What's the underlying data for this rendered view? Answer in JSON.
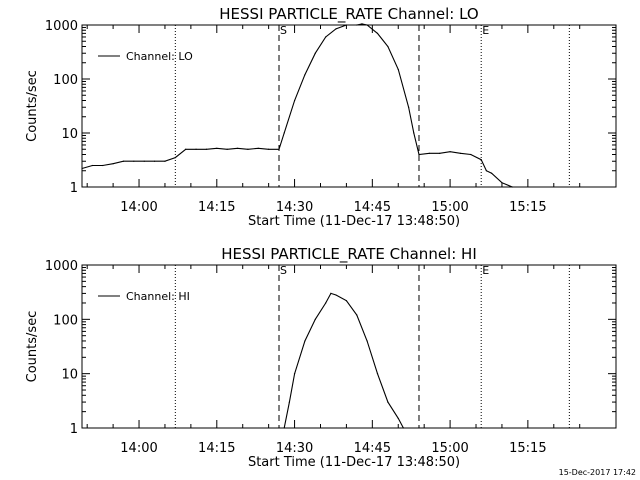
{
  "footer_timestamp": "15-Dec-2017 17:42",
  "chart_data": [
    {
      "type": "line",
      "title": "HESSI PARTICLE_RATE Channel: LO",
      "xlabel": "Start Time (11-Dec-17 13:48:50)",
      "ylabel": "Counts/sec",
      "yscale": "log",
      "xlim": [
        "13:49",
        "15:32"
      ],
      "ylim": [
        1,
        1000
      ],
      "x_tick_labels": [
        "14:00",
        "14:15",
        "14:30",
        "14:45",
        "15:00",
        "15:15"
      ],
      "y_tick_labels": [
        "1",
        "10",
        "100",
        "1000"
      ],
      "legend": {
        "position": "top-left",
        "entries": [
          "Channel: LO"
        ]
      },
      "markers": [
        {
          "label": "S",
          "time": "14:27",
          "style": "dashed"
        },
        {
          "label": "E",
          "time": "15:06",
          "style": "dotted"
        }
      ],
      "vlines": [
        {
          "time": "13:49",
          "style": "dotted"
        },
        {
          "time": "14:07",
          "style": "dotted"
        },
        {
          "time": "14:27",
          "style": "dashed"
        },
        {
          "time": "14:54",
          "style": "dashed"
        },
        {
          "time": "15:06",
          "style": "dotted"
        },
        {
          "time": "15:23",
          "style": "dotted"
        }
      ],
      "series": [
        {
          "name": "Channel: LO",
          "x": [
            "13:49",
            "13:51",
            "13:53",
            "13:55",
            "13:57",
            "13:59",
            "14:01",
            "14:03",
            "14:05",
            "14:07",
            "14:09",
            "14:11",
            "14:13",
            "14:15",
            "14:17",
            "14:19",
            "14:21",
            "14:23",
            "14:25",
            "14:27",
            "14:28",
            "14:30",
            "14:32",
            "14:34",
            "14:36",
            "14:38",
            "14:40",
            "14:42",
            "14:43",
            "14:44",
            "14:46",
            "14:48",
            "14:50",
            "14:52",
            "14:53",
            "14:54",
            "14:56",
            "14:58",
            "15:00",
            "15:02",
            "15:04",
            "15:06",
            "15:07",
            "15:08",
            "15:10",
            "15:12"
          ],
          "y": [
            2.2,
            2.5,
            2.5,
            2.7,
            3.0,
            3.0,
            3.0,
            3.0,
            3.0,
            3.5,
            5.0,
            5.0,
            5.0,
            5.2,
            5.0,
            5.2,
            5.0,
            5.2,
            5.0,
            5.0,
            10,
            40,
            120,
            300,
            600,
            850,
            1000,
            1000,
            1050,
            1000,
            700,
            400,
            150,
            30,
            10,
            4.0,
            4.2,
            4.2,
            4.5,
            4.2,
            4.0,
            3.2,
            2.0,
            1.8,
            1.2,
            1.0
          ]
        }
      ]
    },
    {
      "type": "line",
      "title": "HESSI PARTICLE_RATE Channel: HI",
      "xlabel": "Start Time (11-Dec-17 13:48:50)",
      "ylabel": "Counts/sec",
      "yscale": "log",
      "xlim": [
        "13:49",
        "15:32"
      ],
      "ylim": [
        1,
        1000
      ],
      "x_tick_labels": [
        "14:00",
        "14:15",
        "14:30",
        "14:45",
        "15:00",
        "15:15"
      ],
      "y_tick_labels": [
        "1",
        "10",
        "100",
        "1000"
      ],
      "legend": {
        "position": "top-left",
        "entries": [
          "Channel: HI"
        ]
      },
      "markers": [
        {
          "label": "S",
          "time": "14:27",
          "style": "dashed"
        },
        {
          "label": "E",
          "time": "15:06",
          "style": "dotted"
        }
      ],
      "vlines": [
        {
          "time": "13:49",
          "style": "dotted"
        },
        {
          "time": "14:07",
          "style": "dotted"
        },
        {
          "time": "14:27",
          "style": "dashed"
        },
        {
          "time": "14:54",
          "style": "dashed"
        },
        {
          "time": "15:06",
          "style": "dotted"
        },
        {
          "time": "15:23",
          "style": "dotted"
        }
      ],
      "series": [
        {
          "name": "Channel: HI",
          "x": [
            "14:28",
            "14:29",
            "14:30",
            "14:32",
            "14:34",
            "14:36",
            "14:37",
            "14:38",
            "14:40",
            "14:42",
            "14:44",
            "14:46",
            "14:48",
            "14:50",
            "14:51"
          ],
          "y": [
            1.0,
            3.0,
            10,
            40,
            100,
            200,
            300,
            280,
            220,
            120,
            40,
            10,
            3.0,
            1.5,
            1.0
          ]
        }
      ]
    }
  ]
}
